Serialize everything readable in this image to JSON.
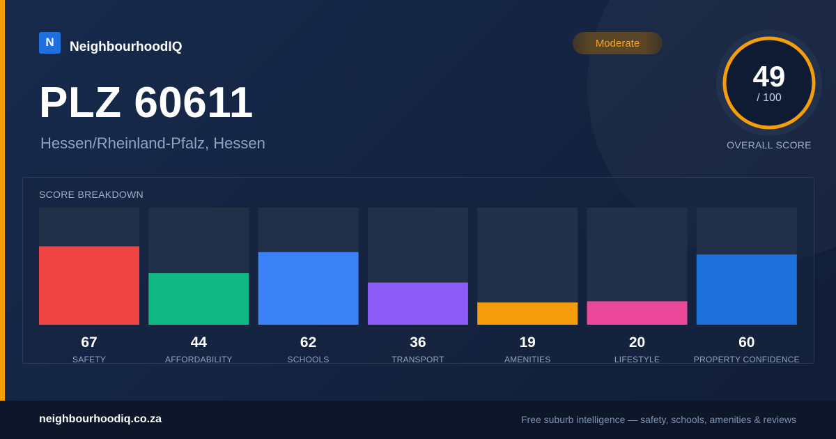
{
  "brand": {
    "logo_letter": "N",
    "name": "NeighbourhoodIQ"
  },
  "badge": {
    "label": "Moderate"
  },
  "header": {
    "title": "PLZ 60611",
    "subtitle": "Hessen/Rheinland-Pfalz, Hessen"
  },
  "overall": {
    "value": "49",
    "max": "/ 100",
    "label": "OVERALL SCORE",
    "score": 49,
    "out_of": 100,
    "ring_color": "#f59e0b"
  },
  "footer": {
    "domain": "neighbourhoodiq.co.za",
    "tagline": "Free suburb intelligence — safety, schools, amenities & reviews"
  },
  "chart_data": {
    "type": "bar",
    "title": "SCORE BREAKDOWN",
    "ylim": [
      0,
      100
    ],
    "grid": false,
    "categories": [
      "SAFETY",
      "AFFORDABILITY",
      "SCHOOLS",
      "TRANSPORT",
      "AMENITIES",
      "LIFESTYLE",
      "PROPERTY CONFIDENCE"
    ],
    "values": [
      67,
      44,
      62,
      36,
      19,
      20,
      60
    ],
    "colors": [
      "#ef4444",
      "#10b981",
      "#3b82f6",
      "#8b5cf6",
      "#f59e0b",
      "#ec4899",
      "#1d6fdc"
    ]
  }
}
